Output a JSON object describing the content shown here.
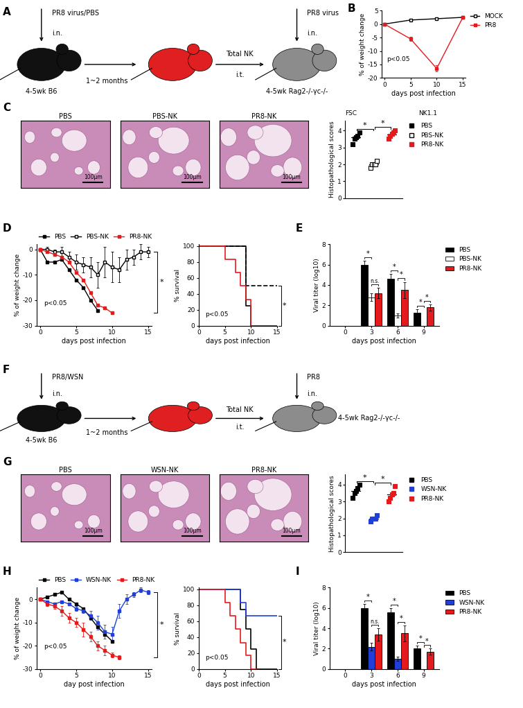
{
  "diagrams": [
    {
      "panel": "A",
      "inoculation": {
        "agent": "PR8 virus/PBS",
        "route": "i.n."
      },
      "donor": "4-5wk B6",
      "interval": "1~2 months",
      "transfer": {
        "cells": "Total NK",
        "route": "i.t."
      },
      "challenge": {
        "agent": "PR8 virus",
        "route": "i.n."
      },
      "recipient": "4-5wk Rag2-/-γc-/-"
    },
    {
      "panel": "F",
      "inoculation": {
        "agent": "PR8/WSN",
        "route": "i.n."
      },
      "donor": "4-5wk B6",
      "interval": "1~2 months",
      "transfer": {
        "cells": "Total NK",
        "route": "i.t."
      },
      "challenge": {
        "agent": "PR8",
        "route": "i.n."
      },
      "recipient": "4-5wk Rag2-/-γc-/-"
    }
  ],
  "images": [
    {
      "panel": "C",
      "titles": [
        "PBS",
        "PBS-NK",
        "PR8-NK"
      ],
      "scale_bar": "100μm"
    },
    {
      "panel": "G",
      "titles": [
        "PBS",
        "WSN-NK",
        "PR8-NK"
      ],
      "scale_bar": "100μm"
    }
  ],
  "chart_data": [
    {
      "panel": "B",
      "type": "line",
      "x": [
        0,
        5,
        10,
        15
      ],
      "series": [
        {
          "name": "MOCK",
          "color": "#000000",
          "marker": "square_open",
          "values": [
            0,
            1.5,
            2,
            2.5
          ],
          "errors": [
            null,
            0.4,
            0.4,
            0.4
          ]
        },
        {
          "name": "PR8",
          "color": "#e41a1c",
          "marker": "square",
          "values": [
            0,
            -5.5,
            -16.5,
            2.5
          ],
          "errors": [
            null,
            0.8,
            1.2,
            0.6
          ]
        }
      ],
      "xlim": [
        -0.5,
        15.5
      ],
      "xticks": [
        0,
        5,
        10,
        15
      ],
      "ylim": [
        -20,
        5
      ],
      "yticks": [
        -20,
        -15,
        -10,
        -5,
        0,
        5
      ],
      "xlabel": "days post infection",
      "ylabel": "% of weight change",
      "annotations": [
        "p<0.05"
      ],
      "legend": "right"
    },
    {
      "type": "dot",
      "ylabel": "Histopathological scores",
      "ylim": [
        0,
        4.6
      ],
      "yticks": [
        0,
        1,
        2,
        3,
        4
      ],
      "tick_labels": "y",
      "series": [
        {
          "name": "PBS",
          "color": "#000000",
          "marker": "square",
          "values": [
            3.2,
            3.5,
            3.6,
            3.7,
            3.9
          ]
        },
        {
          "name": "PBS-NK",
          "color": "#000000",
          "marker": "square_open",
          "values": [
            1.8,
            2,
            2,
            2,
            2.2
          ]
        },
        {
          "name": "PR8-NK",
          "color": "#e41a1c",
          "marker": "square",
          "values": [
            3.5,
            3.7,
            3.8,
            3.9,
            4.0
          ]
        }
      ],
      "significance": [
        {
          "between": [
            "PBS",
            "PBS-NK"
          ],
          "label": "*"
        },
        {
          "between": [
            "PBS-NK",
            "PR8-NK"
          ],
          "label": "*"
        }
      ],
      "legend": "right",
      "annotations": [
        "FSC",
        "NK1.1"
      ]
    },
    {
      "panel": "D",
      "type": "line",
      "x": [
        0,
        1,
        2,
        3,
        4,
        5,
        6,
        7,
        8,
        9,
        10,
        11,
        12,
        13,
        14,
        15
      ],
      "series": [
        {
          "name": "PBS",
          "color": "#000000",
          "marker": "square",
          "values": [
            0,
            -5,
            -5,
            -4,
            -8,
            -12,
            -15,
            -20,
            -24,
            null,
            null,
            null,
            null,
            null,
            null,
            null
          ]
        },
        {
          "name": "PBS-NK",
          "color": "#000000",
          "marker": "square_open",
          "values": [
            0,
            0,
            -1,
            -1,
            -3,
            -5,
            -6,
            -7,
            -10,
            -5,
            -7,
            -8,
            -4,
            -3,
            -1,
            -1
          ],
          "errors": [
            null,
            1,
            1,
            2,
            2,
            3,
            3,
            4,
            5,
            6,
            6,
            5,
            4,
            3,
            3,
            2
          ]
        },
        {
          "name": "PR8-NK",
          "color": "#e41a1c",
          "marker": "square",
          "values": [
            0,
            -1,
            -2,
            -3,
            -5,
            -9,
            -12,
            -17,
            -22,
            -23,
            -25,
            null,
            null,
            null,
            null,
            null
          ]
        }
      ],
      "xlim": [
        -0.5,
        15.5
      ],
      "xticks": [
        0,
        5,
        10,
        15
      ],
      "ylim": [
        -30,
        2
      ],
      "yticks": [
        -30,
        -20,
        -10,
        0
      ],
      "xlabel": "days post infection",
      "ylabel": "% of weight change",
      "annotations": [
        "p<0.05"
      ],
      "legend": "top",
      "significance": [
        {
          "between": [
            "PBS-NK",
            "PR8-NK"
          ],
          "label": "*"
        }
      ]
    },
    {
      "type": "step",
      "x": [
        0,
        5,
        7,
        8,
        9,
        10,
        15
      ],
      "series": [
        {
          "name": "PBS",
          "color": "#000000",
          "line_style": "solid",
          "values": [
            100,
            100,
            100,
            100,
            25,
            0,
            null
          ]
        },
        {
          "name": "PBS-NK",
          "color": "#000000",
          "line_style": "dashed",
          "values": [
            100,
            100,
            100,
            100,
            50,
            50,
            50
          ]
        },
        {
          "name": "PR8-NK",
          "color": "#e41a1c",
          "line_style": "solid",
          "values": [
            100,
            83,
            67,
            50,
            33,
            0,
            null
          ]
        }
      ],
      "xlim": [
        0,
        15
      ],
      "xticks": [
        0,
        5,
        10,
        15
      ],
      "ylim": [
        0,
        102
      ],
      "yticks": [
        0,
        20,
        40,
        60,
        80,
        100
      ],
      "xlabel": "days post infection",
      "ylabel": "% survival",
      "annotations": [
        "p<0.05"
      ],
      "significance": [
        {
          "between": [
            "PBS-NK",
            "PR8-NK"
          ],
          "label": "*"
        }
      ]
    },
    {
      "panel": "E",
      "type": "bar",
      "categories": [
        "0",
        "3",
        "6",
        "9"
      ],
      "series": [
        {
          "name": "PBS",
          "color": "#000000",
          "values": [
            0,
            6,
            4.6,
            1.3
          ],
          "errors": [
            null,
            0.4,
            0.5,
            0.3
          ]
        },
        {
          "name": "PBS-NK",
          "color": "#ffffff",
          "values": [
            0,
            2.8,
            1.0,
            0
          ],
          "errors": [
            null,
            0.4,
            0.2,
            0
          ]
        },
        {
          "name": "PR8-NK",
          "color": "#e41a1c",
          "values": [
            0,
            3.2,
            3.5,
            1.8
          ],
          "errors": [
            null,
            0.5,
            0.8,
            0.3
          ]
        }
      ],
      "ylim": [
        0,
        8
      ],
      "yticks": [
        0,
        2,
        4,
        6,
        8
      ],
      "xlabel": "days post infection",
      "ylabel": "Viral titer (log10)",
      "legend": "right",
      "significance": [
        {
          "category": "3",
          "between": [
            "PBS",
            "PBS-NK"
          ],
          "label": "*"
        },
        {
          "category": "3",
          "between": [
            "PBS-NK",
            "PR8-NK"
          ],
          "label": "n.s."
        },
        {
          "category": "6",
          "between": [
            "PBS",
            "PBS-NK"
          ],
          "label": "*"
        },
        {
          "category": "6",
          "between": [
            "PBS-NK",
            "PR8-NK"
          ],
          "label": "*"
        },
        {
          "category": "9",
          "between": [
            "PBS",
            "PBS-NK"
          ],
          "label": "*"
        },
        {
          "category": "9",
          "between": [
            "PBS-NK",
            "PR8-NK"
          ],
          "label": "*"
        }
      ]
    },
    {
      "type": "dot",
      "ylabel": "Histopathological scores",
      "ylim": [
        0,
        4.6
      ],
      "yticks": [
        0,
        1,
        2,
        3,
        4
      ],
      "tick_labels": "y",
      "series": [
        {
          "name": "PBS",
          "color": "#000000",
          "marker": "square",
          "values": [
            3.2,
            3.5,
            3.6,
            3.8,
            4.0
          ]
        },
        {
          "name": "WSN-NK",
          "color": "#1f3fd8",
          "marker": "square",
          "values": [
            1.8,
            2,
            2,
            2,
            2.2
          ]
        },
        {
          "name": "PR8-NK",
          "color": "#e41a1c",
          "marker": "square",
          "values": [
            3.0,
            3.2,
            3.4,
            3.5,
            3.9
          ]
        }
      ],
      "significance": [
        {
          "between": [
            "PBS",
            "WSN-NK"
          ],
          "label": "*"
        },
        {
          "between": [
            "WSN-NK",
            "PR8-NK"
          ],
          "label": "*"
        }
      ],
      "legend": "right"
    },
    {
      "panel": "H",
      "type": "line",
      "x": [
        0,
        1,
        2,
        3,
        4,
        5,
        6,
        7,
        8,
        9,
        10,
        11,
        12,
        13,
        14,
        15
      ],
      "series": [
        {
          "name": "PBS",
          "color": "#000000",
          "marker": "square",
          "values": [
            0,
            1,
            2,
            3,
            0,
            -2,
            -4,
            -8,
            -12,
            -15,
            -18,
            null,
            null,
            null,
            null,
            null
          ]
        },
        {
          "name": "WSN-NK",
          "color": "#1f3fd8",
          "marker": "square",
          "values": [
            0,
            -1,
            -2,
            -1,
            -2,
            -4,
            -5,
            -7,
            -10,
            -14,
            -15,
            -5,
            0,
            2,
            4,
            3
          ],
          "errors": [
            null,
            0,
            0,
            0,
            0,
            1,
            1,
            2,
            3,
            3,
            3,
            3,
            2,
            1,
            1,
            1
          ]
        },
        {
          "name": "PR8-NK",
          "color": "#e41a1c",
          "marker": "square",
          "values": [
            0,
            -2,
            -3,
            -5,
            -8,
            -10,
            -13,
            -16,
            -20,
            -22,
            -24,
            -25,
            null,
            null,
            null,
            null
          ],
          "errors": [
            null,
            1,
            1,
            2,
            2,
            2,
            3,
            2,
            2,
            2,
            1,
            1,
            null,
            null,
            null,
            null
          ]
        }
      ],
      "xlim": [
        -0.5,
        15.5
      ],
      "xticks": [
        0,
        5,
        10,
        15
      ],
      "ylim": [
        -30,
        5
      ],
      "yticks": [
        -30,
        -20,
        -10,
        0
      ],
      "xlabel": "day post infection",
      "ylabel": "% of weight change",
      "annotations": [
        "p<0.05"
      ],
      "legend": "top",
      "significance": [
        {
          "between": [
            "WSN-NK",
            "PR8-NK"
          ],
          "label": "*"
        }
      ]
    },
    {
      "type": "step",
      "x": [
        0,
        5,
        6,
        7,
        8,
        9,
        10,
        11,
        15
      ],
      "series": [
        {
          "name": "PBS",
          "color": "#000000",
          "line_style": "solid",
          "values": [
            100,
            100,
            100,
            100,
            75,
            50,
            25,
            0,
            null
          ]
        },
        {
          "name": "WSN-NK",
          "color": "#1f3fd8",
          "line_style": "solid",
          "values": [
            100,
            100,
            100,
            100,
            83,
            67,
            67,
            67,
            67
          ]
        },
        {
          "name": "PR8-NK",
          "color": "#e41a1c",
          "line_style": "solid",
          "values": [
            100,
            83,
            67,
            50,
            33,
            17,
            0,
            null,
            null
          ]
        }
      ],
      "xlim": [
        0,
        15
      ],
      "xticks": [
        0,
        5,
        10,
        15
      ],
      "ylim": [
        0,
        102
      ],
      "yticks": [
        0,
        20,
        40,
        60,
        80,
        100
      ],
      "xlabel": "days post infection",
      "ylabel": "% survival",
      "annotations": [
        "p<0.05"
      ],
      "significance": [
        {
          "between": [
            "WSN-NK",
            "PR8-NK"
          ],
          "label": "*"
        }
      ]
    },
    {
      "panel": "I",
      "type": "bar",
      "categories": [
        "0",
        "3",
        "6",
        "9"
      ],
      "series": [
        {
          "name": "PBS",
          "color": "#000000",
          "values": [
            0,
            6,
            5.6,
            2
          ],
          "errors": [
            null,
            0.4,
            0.4,
            0.3
          ]
        },
        {
          "name": "WSN-NK",
          "color": "#1f3fd8",
          "values": [
            0,
            2.2,
            1.0,
            0
          ],
          "errors": [
            null,
            0.4,
            0.2,
            0
          ]
        },
        {
          "name": "PR8-NK",
          "color": "#e41a1c",
          "values": [
            0,
            3.4,
            3.5,
            1.7
          ],
          "errors": [
            null,
            0.6,
            0.8,
            0.3
          ]
        }
      ],
      "ylim": [
        0,
        8
      ],
      "yticks": [
        0,
        2,
        4,
        6,
        8
      ],
      "xlabel": "days post infection",
      "ylabel": "Viral titer (log10)",
      "legend": "right",
      "significance": [
        {
          "category": "3",
          "between": [
            "PBS",
            "WSN-NK"
          ],
          "label": "*"
        },
        {
          "category": "3",
          "between": [
            "WSN-NK",
            "PR8-NK"
          ],
          "label": "n.s."
        },
        {
          "category": "6",
          "between": [
            "PBS",
            "WSN-NK"
          ],
          "label": "*"
        },
        {
          "category": "6",
          "between": [
            "WSN-NK",
            "PR8-NK"
          ],
          "label": "*"
        },
        {
          "category": "9",
          "between": [
            "PBS",
            "WSN-NK"
          ],
          "label": "*"
        },
        {
          "category": "9",
          "between": [
            "WSN-NK",
            "PR8-NK"
          ],
          "label": "*"
        }
      ]
    }
  ]
}
